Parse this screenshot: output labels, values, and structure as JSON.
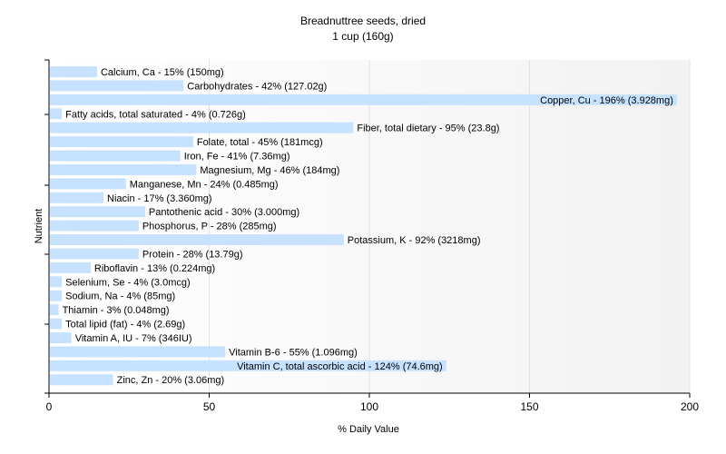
{
  "chart_data": {
    "type": "bar",
    "orientation": "horizontal",
    "title": "Breadnuttree seeds, dried",
    "subtitle": "1 cup (160g)",
    "xlabel": "% Daily Value",
    "ylabel": "Nutrient",
    "xlim": [
      0,
      200
    ],
    "xticks": [
      "0",
      "50",
      "100",
      "150",
      "200"
    ],
    "grid": true,
    "bar_color": "#c6e2ff",
    "categories": [
      "Calcium, Ca",
      "Carbohydrates",
      "Copper, Cu",
      "Fatty acids, total saturated",
      "Fiber, total dietary",
      "Folate, total",
      "Iron, Fe",
      "Magnesium, Mg",
      "Manganese, Mn",
      "Niacin",
      "Pantothenic acid",
      "Phosphorus, P",
      "Potassium, K",
      "Protein",
      "Riboflavin",
      "Selenium, Se",
      "Sodium, Na",
      "Thiamin",
      "Total lipid (fat)",
      "Vitamin A, IU",
      "Vitamin B-6",
      "Vitamin C, total ascorbic acid",
      "Zinc, Zn"
    ],
    "values": [
      15,
      42,
      196,
      4,
      95,
      45,
      41,
      46,
      24,
      17,
      30,
      28,
      92,
      28,
      13,
      4,
      4,
      3,
      4,
      7,
      55,
      124,
      20
    ],
    "labels": [
      "Calcium, Ca - 15% (150mg)",
      "Carbohydrates - 42% (127.02g)",
      "Copper, Cu - 196% (3.928mg)",
      "Fatty acids, total saturated - 4% (0.726g)",
      "Fiber, total dietary - 95% (23.8g)",
      "Folate, total - 45% (181mcg)",
      "Iron, Fe - 41% (7.36mg)",
      "Magnesium, Mg - 46% (184mg)",
      "Manganese, Mn - 24% (0.485mg)",
      "Niacin - 17% (3.360mg)",
      "Pantothenic acid - 30% (3.000mg)",
      "Phosphorus, P - 28% (285mg)",
      "Potassium, K - 92% (3218mg)",
      "Protein - 28% (13.79g)",
      "Riboflavin - 13% (0.224mg)",
      "Selenium, Se - 4% (3.0mcg)",
      "Sodium, Na - 4% (85mg)",
      "Thiamin - 3% (0.048mg)",
      "Total lipid (fat) - 4% (2.69g)",
      "Vitamin A, IU - 7% (346IU)",
      "Vitamin B-6 - 55% (1.096mg)",
      "Vitamin C, total ascorbic acid - 124% (74.6mg)",
      "Zinc, Zn - 20% (3.06mg)"
    ]
  }
}
